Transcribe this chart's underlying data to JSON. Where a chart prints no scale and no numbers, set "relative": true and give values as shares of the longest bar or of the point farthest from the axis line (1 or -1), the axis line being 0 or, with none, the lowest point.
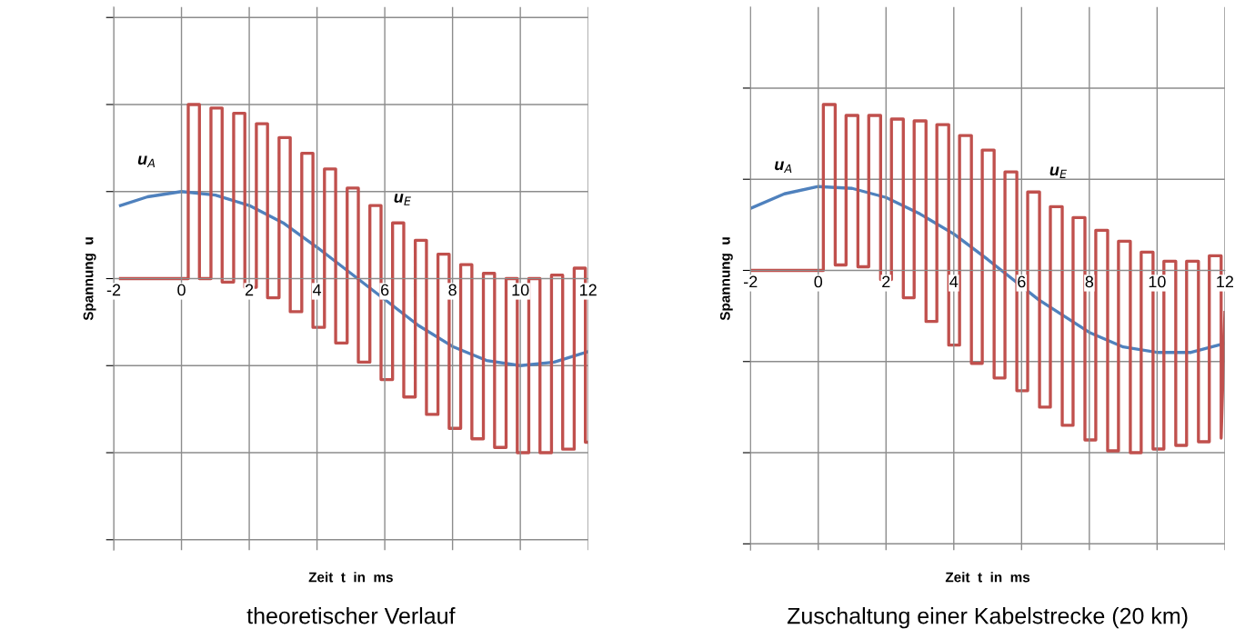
{
  "chart_data": [
    {
      "type": "line",
      "title": "theoretischer Verlauf",
      "xlabel": "Zeit  t  in  ms",
      "ylabel": "Spannung  u",
      "relative": true,
      "grid": true,
      "marker": "none",
      "line_style": "solid",
      "xlim": [
        -2,
        12
      ],
      "xticks": [
        -2,
        0,
        2,
        4,
        6,
        8,
        10,
        12
      ],
      "annotations": [
        "u$_{A}$",
        "u$_{E}$"
      ],
      "series": [
        {
          "color": "#4f81bd",
          "x": [
            -1.8,
            -1,
            0,
            1,
            2,
            3,
            4,
            5,
            6,
            7,
            8,
            9,
            10,
            11,
            12
          ],
          "values": [
            0.42,
            0.47,
            0.5,
            0.48,
            0.42,
            0.32,
            0.18,
            0.03,
            -0.12,
            -0.27,
            -0.39,
            -0.47,
            -0.5,
            -0.48,
            -0.42
          ]
        },
        {
          "color": "#c0504d",
          "x": [
            -1.8,
            0.2,
            0.2,
            0.53,
            0.53,
            0.87,
            0.87,
            1.2,
            1.2,
            1.54,
            1.54,
            1.87,
            1.87,
            2.21,
            2.21,
            2.54,
            2.54,
            2.88,
            2.88,
            3.21,
            3.21,
            3.55,
            3.55,
            3.88,
            3.88,
            4.22,
            4.22,
            4.55,
            4.55,
            4.89,
            4.89,
            5.22,
            5.22,
            5.56,
            5.56,
            5.89,
            5.89,
            6.23,
            6.23,
            6.56,
            6.56,
            6.9,
            6.9,
            7.23,
            7.23,
            7.57,
            7.57,
            7.9,
            7.9,
            8.24,
            8.24,
            8.57,
            8.57,
            8.91,
            8.91,
            9.24,
            9.24,
            9.58,
            9.58,
            9.91,
            9.91,
            10.25,
            10.25,
            10.58,
            10.58,
            10.92,
            10.92,
            11.25,
            11.25,
            11.59,
            11.59,
            11.92,
            11.92,
            12
          ],
          "values": [
            0,
            0,
            1.0,
            1.0,
            0.0,
            0.0,
            0.98,
            0.98,
            -0.02,
            -0.02,
            0.95,
            0.95,
            -0.05,
            -0.05,
            0.89,
            0.89,
            -0.11,
            -0.11,
            0.81,
            0.81,
            -0.19,
            -0.19,
            0.72,
            0.72,
            -0.28,
            -0.28,
            0.63,
            0.63,
            -0.37,
            -0.37,
            0.52,
            0.52,
            -0.48,
            -0.48,
            0.42,
            0.42,
            -0.58,
            -0.58,
            0.32,
            0.32,
            -0.68,
            -0.68,
            0.22,
            0.22,
            -0.78,
            -0.78,
            0.14,
            0.14,
            -0.86,
            -0.86,
            0.08,
            0.08,
            -0.92,
            -0.92,
            0.03,
            0.03,
            -0.97,
            -0.97,
            0.0,
            0.0,
            -1.0,
            -1.0,
            0.0,
            0.0,
            -1.0,
            -1.0,
            0.02,
            0.02,
            -0.98,
            -0.98,
            0.06,
            0.06,
            -0.94,
            -0.94
          ]
        }
      ]
    },
    {
      "type": "line",
      "title": "Zuschaltung einer Kabelstrecke (20 km)",
      "xlabel": "Zeit  t  in  ms",
      "ylabel": "Spannung  u",
      "relative": true,
      "grid": true,
      "marker": "none",
      "line_style": "solid",
      "xlim": [
        -2,
        12
      ],
      "xticks": [
        -2,
        0,
        2,
        4,
        6,
        8,
        10,
        12
      ],
      "annotations": [
        "u$_{A}$",
        "u$_{E}$"
      ],
      "series": [
        {
          "color": "#4f81bd",
          "x": [
            -2,
            -1,
            0,
            1,
            2,
            3,
            4,
            5,
            6.5,
            7,
            8,
            9,
            10,
            11,
            12
          ],
          "values": [
            0.34,
            0.42,
            0.46,
            0.45,
            0.4,
            0.31,
            0.2,
            0.06,
            -0.16,
            -0.22,
            -0.34,
            -0.42,
            -0.45,
            -0.45,
            -0.4
          ]
        },
        {
          "color": "#c0504d",
          "x": [
            -2,
            0.15,
            0.15,
            0.5,
            0.5,
            0.82,
            0.82,
            1.17,
            1.17,
            1.49,
            1.49,
            1.84,
            1.84,
            2.16,
            2.16,
            2.51,
            2.51,
            2.83,
            2.83,
            3.18,
            3.18,
            3.5,
            3.5,
            3.85,
            3.85,
            4.17,
            4.17,
            4.52,
            4.52,
            4.84,
            4.84,
            5.19,
            5.19,
            5.51,
            5.51,
            5.86,
            5.86,
            6.18,
            6.18,
            6.53,
            6.53,
            6.85,
            6.85,
            7.2,
            7.2,
            7.52,
            7.52,
            7.87,
            7.87,
            8.19,
            8.19,
            8.54,
            8.54,
            8.86,
            8.86,
            9.21,
            9.21,
            9.53,
            9.53,
            9.88,
            9.88,
            10.2,
            10.2,
            10.55,
            10.55,
            10.87,
            10.87,
            11.22,
            11.22,
            11.54,
            11.54,
            11.89,
            11.89,
            12
          ],
          "values": [
            0,
            0,
            0.91,
            0.91,
            0.03,
            0.03,
            0.85,
            0.85,
            0.02,
            0.02,
            0.85,
            0.85,
            -0.05,
            -0.05,
            0.83,
            0.83,
            -0.15,
            -0.15,
            0.82,
            0.82,
            -0.28,
            -0.28,
            0.8,
            0.8,
            -0.41,
            -0.41,
            0.74,
            0.74,
            -0.51,
            -0.51,
            0.66,
            0.66,
            -0.59,
            -0.59,
            0.54,
            0.54,
            -0.66,
            -0.66,
            0.43,
            0.43,
            -0.75,
            -0.75,
            0.35,
            0.35,
            -0.85,
            -0.85,
            0.29,
            0.29,
            -0.93,
            -0.93,
            0.22,
            0.22,
            -0.99,
            -0.99,
            0.16,
            0.16,
            -1.0,
            -1.0,
            0.1,
            0.1,
            -0.98,
            -0.98,
            0.05,
            0.05,
            -0.96,
            -0.96,
            0.05,
            0.05,
            -0.94,
            -0.94,
            0.08,
            0.08,
            -0.92,
            -0.23
          ]
        }
      ]
    }
  ]
}
